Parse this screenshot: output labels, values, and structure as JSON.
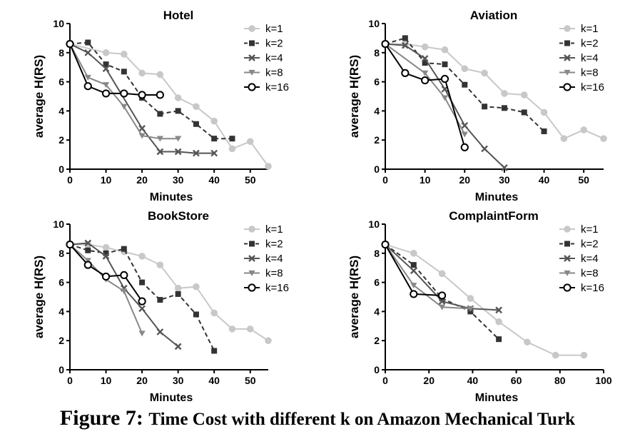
{
  "caption": {
    "label": "Figure 7:",
    "text": "Time Cost with different k on Amazon Mechanical Turk"
  },
  "series_style": [
    {
      "color": "#c8c8c8",
      "dash": "none",
      "marker": "circle-filled"
    },
    {
      "color": "#333333",
      "dash": "dashed",
      "marker": "square"
    },
    {
      "color": "#555555",
      "dash": "none",
      "marker": "x"
    },
    {
      "color": "#888888",
      "dash": "none",
      "marker": "triangle-down"
    },
    {
      "color": "#000000",
      "dash": "none",
      "marker": "circle-open"
    }
  ],
  "chart_data": [
    {
      "type": "line",
      "title": "Hotel",
      "xlabel": "Minutes",
      "ylabel": "average H(RS)",
      "xlim": [
        0,
        55
      ],
      "ylim": [
        0,
        10
      ],
      "xticks": [
        0,
        10,
        20,
        30,
        40,
        50
      ],
      "yticks": [
        0,
        2,
        4,
        6,
        8,
        10
      ],
      "legend": "top-right",
      "series": [
        {
          "name": "k=1",
          "x": [
            0,
            10,
            15,
            20,
            25,
            30,
            35,
            40,
            45,
            50,
            55
          ],
          "y": [
            8.6,
            8.0,
            7.9,
            6.6,
            6.5,
            4.9,
            4.3,
            3.3,
            1.4,
            1.9,
            0.2
          ]
        },
        {
          "name": "k=2",
          "x": [
            0,
            5,
            10,
            15,
            20,
            25,
            30,
            35,
            40,
            45
          ],
          "y": [
            8.6,
            8.7,
            7.2,
            6.7,
            4.9,
            3.8,
            4.0,
            3.1,
            2.1,
            2.1
          ]
        },
        {
          "name": "k=4",
          "x": [
            0,
            5,
            10,
            20,
            25,
            30,
            35,
            40
          ],
          "y": [
            8.6,
            8.0,
            6.9,
            2.8,
            1.2,
            1.2,
            1.1,
            1.1
          ]
        },
        {
          "name": "k=8",
          "x": [
            0,
            5,
            10,
            15,
            20,
            25,
            30
          ],
          "y": [
            8.6,
            6.3,
            5.8,
            4.3,
            2.3,
            2.1,
            2.1
          ]
        },
        {
          "name": "k=16",
          "x": [
            0,
            5,
            10,
            15,
            20,
            25
          ],
          "y": [
            8.6,
            5.7,
            5.2,
            5.2,
            5.1,
            5.1
          ]
        }
      ]
    },
    {
      "type": "line",
      "title": "Aviation",
      "xlabel": "Minutes",
      "ylabel": "average H(RS)",
      "xlim": [
        0,
        55
      ],
      "ylim": [
        0,
        10
      ],
      "xticks": [
        0,
        10,
        20,
        30,
        40,
        50
      ],
      "yticks": [
        0,
        2,
        4,
        6,
        8,
        10
      ],
      "legend": "top-right",
      "series": [
        {
          "name": "k=1",
          "x": [
            0,
            5,
            10,
            15,
            20,
            25,
            30,
            35,
            40,
            45,
            50,
            55
          ],
          "y": [
            8.6,
            8.6,
            8.4,
            8.2,
            6.9,
            6.6,
            5.2,
            5.1,
            3.9,
            2.1,
            2.7,
            2.1
          ]
        },
        {
          "name": "k=2",
          "x": [
            0,
            5,
            10,
            15,
            20,
            25,
            30,
            35,
            40
          ],
          "y": [
            8.6,
            9.0,
            7.3,
            7.2,
            5.8,
            4.3,
            4.2,
            3.9,
            2.6
          ]
        },
        {
          "name": "k=4",
          "x": [
            0,
            5,
            10,
            15,
            20,
            25,
            30
          ],
          "y": [
            8.6,
            8.5,
            7.6,
            5.5,
            3.0,
            1.4,
            0.1
          ]
        },
        {
          "name": "k=8",
          "x": [
            0,
            10,
            15,
            20
          ],
          "y": [
            8.6,
            6.6,
            4.9,
            2.4
          ]
        },
        {
          "name": "k=16",
          "x": [
            0,
            5,
            10,
            15,
            20
          ],
          "y": [
            8.6,
            6.6,
            6.1,
            6.2,
            1.5
          ]
        }
      ]
    },
    {
      "type": "line",
      "title": "BookStore",
      "xlabel": "Minutes",
      "ylabel": "average H(RS)",
      "xlim": [
        0,
        55
      ],
      "ylim": [
        0,
        10
      ],
      "xticks": [
        0,
        10,
        20,
        30,
        40,
        50
      ],
      "yticks": [
        0,
        2,
        4,
        6,
        8,
        10
      ],
      "legend": "top-right",
      "series": [
        {
          "name": "k=1",
          "x": [
            0,
            5,
            10,
            15,
            20,
            25,
            30,
            35,
            40,
            45,
            50,
            55
          ],
          "y": [
            8.6,
            8.6,
            8.4,
            8.1,
            7.8,
            7.2,
            5.6,
            5.7,
            3.9,
            2.8,
            2.8,
            2.0
          ]
        },
        {
          "name": "k=2",
          "x": [
            0,
            5,
            10,
            15,
            20,
            25,
            30,
            35,
            40
          ],
          "y": [
            8.6,
            8.2,
            8.0,
            8.3,
            6.0,
            4.8,
            5.2,
            3.8,
            1.3
          ]
        },
        {
          "name": "k=4",
          "x": [
            0,
            5,
            10,
            15,
            20,
            25,
            30
          ],
          "y": [
            8.6,
            8.7,
            7.8,
            5.6,
            4.2,
            2.6,
            1.6
          ]
        },
        {
          "name": "k=8",
          "x": [
            0,
            5,
            10,
            15,
            20
          ],
          "y": [
            8.6,
            7.5,
            6.2,
            5.4,
            2.5
          ]
        },
        {
          "name": "k=16",
          "x": [
            0,
            5,
            10,
            15,
            20
          ],
          "y": [
            8.6,
            7.2,
            6.4,
            6.5,
            4.7
          ]
        }
      ]
    },
    {
      "type": "line",
      "title": "ComplaintForm",
      "xlabel": "Minutes",
      "ylabel": "average H(RS)",
      "xlim": [
        0,
        100
      ],
      "ylim": [
        0,
        10
      ],
      "xticks": [
        0,
        20,
        40,
        60,
        80,
        100
      ],
      "yticks": [
        0,
        2,
        4,
        6,
        8,
        10
      ],
      "legend": "top-right",
      "series": [
        {
          "name": "k=1",
          "x": [
            0,
            13,
            26,
            39,
            52,
            65,
            78,
            91
          ],
          "y": [
            8.6,
            8.0,
            6.6,
            4.9,
            3.3,
            1.9,
            1.0,
            1.0
          ]
        },
        {
          "name": "k=2",
          "x": [
            0,
            13,
            26,
            39,
            52
          ],
          "y": [
            8.6,
            7.2,
            4.9,
            4.0,
            2.1
          ]
        },
        {
          "name": "k=4",
          "x": [
            0,
            13,
            26,
            39,
            52
          ],
          "y": [
            8.6,
            6.8,
            4.7,
            4.2,
            4.1
          ]
        },
        {
          "name": "k=8",
          "x": [
            0,
            13,
            26,
            39
          ],
          "y": [
            8.6,
            5.8,
            4.3,
            4.2
          ]
        },
        {
          "name": "k=16",
          "x": [
            0,
            13,
            26
          ],
          "y": [
            8.6,
            5.2,
            5.1
          ]
        }
      ]
    }
  ]
}
